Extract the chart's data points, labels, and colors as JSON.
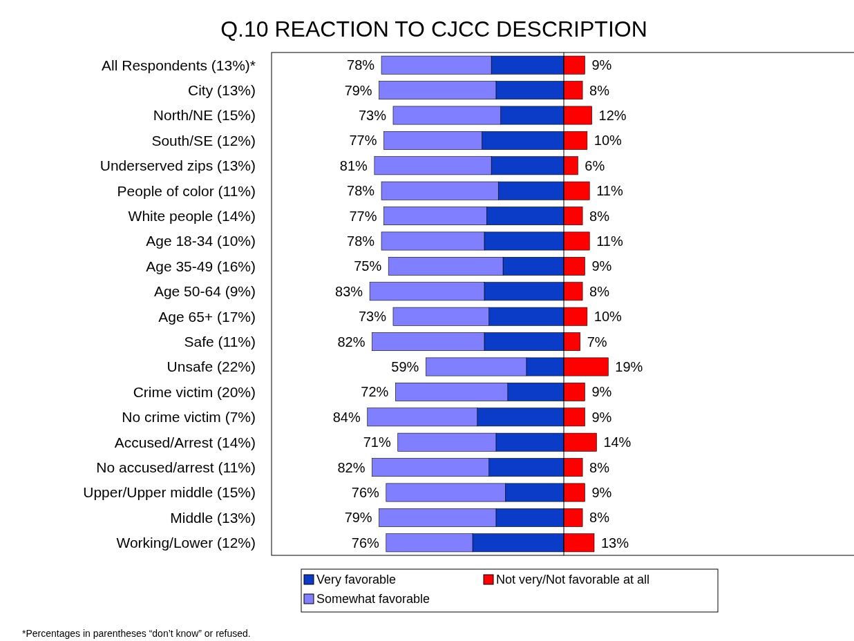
{
  "chart_data": {
    "type": "bar",
    "orientation": "horizontal",
    "stacked": true,
    "title": "Q.10 REACTION TO CJCC DESCRIPTION",
    "categories": [
      "All Respondents (13%)*",
      "City (13%)",
      "North/NE (15%)",
      "South/SE (12%)",
      "Underserved zips (13%)",
      "People of color (11%)",
      "White people (14%)",
      "Age 18-34 (10%)",
      "Age 35-49 (16%)",
      "Age 50-64 (9%)",
      "Age 65+ (17%)",
      "Safe (11%)",
      "Unsafe (22%)",
      "Crime victim (20%)",
      "No crime victim (7%)",
      "Accused/Arrest (14%)",
      "No accused/arrest (11%)",
      "Upper/Upper middle (15%)",
      "Middle (13%)",
      "Working/Lower (12%)"
    ],
    "series": [
      {
        "name": "Very favorable",
        "color": "#0a3cc8",
        "values": [
          -31,
          -29,
          -27,
          -35,
          -31,
          -28,
          -33,
          -34,
          -26,
          -34,
          -32,
          -34,
          -16,
          -24,
          -37,
          -29,
          -32,
          -25,
          -29,
          -39
        ]
      },
      {
        "name": "Somewhat favorable",
        "color": "#7f7fff",
        "values": [
          -47,
          -50,
          -46,
          -42,
          -50,
          -50,
          -44,
          -44,
          -49,
          -49,
          -41,
          -48,
          -43,
          -48,
          -47,
          -42,
          -50,
          -51,
          -50,
          -37
        ]
      },
      {
        "name": "Not very/Not favorable at all",
        "color": "#ff0000",
        "values": [
          9,
          8,
          12,
          10,
          6,
          11,
          8,
          11,
          9,
          8,
          10,
          7,
          19,
          9,
          9,
          14,
          8,
          9,
          8,
          13
        ],
        "value_labels": [
          "9%",
          "8%",
          "12%",
          "10%",
          "6%",
          "11%",
          "8%",
          "11%",
          "9%",
          "8%",
          "10%",
          "7%",
          "19%",
          "9%",
          "9%",
          "14%",
          "8%",
          "9%",
          "8%",
          "13%"
        ]
      }
    ],
    "xlim": [
      -125,
      125
    ],
    "tick_labels": "y",
    "legend": "bottom",
    "annotations": [
      {
        "text": "78%",
        "x": -78,
        "y": "All Respondents (13%)*"
      },
      {
        "text": "79%",
        "x": -79,
        "y": "City (13%)"
      },
      {
        "text": "73%",
        "x": -73,
        "y": "North/NE (15%)"
      },
      {
        "text": "77%",
        "x": -77,
        "y": "South/SE (12%)"
      },
      {
        "text": "81%",
        "x": -81,
        "y": "Underserved zips (13%)"
      },
      {
        "text": "78%",
        "x": -78,
        "y": "People of color (11%)"
      },
      {
        "text": "77%",
        "x": -77,
        "y": "White people (14%)"
      },
      {
        "text": "78%",
        "x": -78,
        "y": "Age 18-34 (10%)"
      },
      {
        "text": "75%",
        "x": -75,
        "y": "Age 35-49 (16%)"
      },
      {
        "text": "83%",
        "x": -83,
        "y": "Age 50-64 (9%)"
      },
      {
        "text": "73%",
        "x": -73,
        "y": "Age 65+ (17%)"
      },
      {
        "text": "82%",
        "x": -82,
        "y": "Safe (11%)"
      },
      {
        "text": "59%",
        "x": -59,
        "y": "Unsafe (22%)"
      },
      {
        "text": "72%",
        "x": -72,
        "y": "Crime victim (20%)"
      },
      {
        "text": "84%",
        "x": -84,
        "y": "No crime victim (7%)"
      },
      {
        "text": "71%",
        "x": -71,
        "y": "Accused/Arrest (14%)"
      },
      {
        "text": "82%",
        "x": -82,
        "y": "No accused/arrest (11%)"
      },
      {
        "text": "76%",
        "x": -76,
        "y": "Upper/Upper middle (15%)"
      },
      {
        "text": "79%",
        "x": -79,
        "y": "Middle (13%)"
      },
      {
        "text": "76%",
        "x": -76,
        "y": "Working/Lower (12%)"
      },
      "*Percentages in parentheses “don’t know” or refused."
    ]
  }
}
